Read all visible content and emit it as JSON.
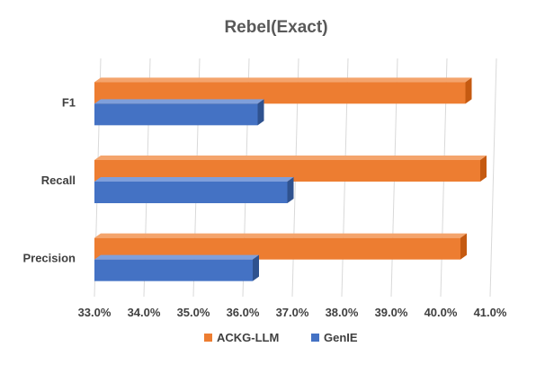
{
  "chart_data": {
    "type": "bar",
    "orientation": "horizontal",
    "title": "Rebel(Exact)",
    "categories": [
      "F1",
      "Recall",
      "Precision"
    ],
    "series": [
      {
        "name": "ACKG-LLM",
        "values": [
          40.5,
          40.8,
          40.4
        ],
        "color": "#ED7D31",
        "depth_color": "#C55A11",
        "top_color": "#F4A46C"
      },
      {
        "name": "GenIE",
        "values": [
          36.3,
          36.9,
          36.2
        ],
        "color": "#4472C4",
        "depth_color": "#2F528F",
        "top_color": "#7F9FDB"
      }
    ],
    "xlim": [
      33.0,
      41.0
    ],
    "xticks": [
      "33.0%",
      "34.0%",
      "35.0%",
      "36.0%",
      "37.0%",
      "38.0%",
      "39.0%",
      "40.0%",
      "41.0%"
    ],
    "grid": true,
    "legend": "bottom",
    "gridline_color": "#D9D9D9"
  }
}
